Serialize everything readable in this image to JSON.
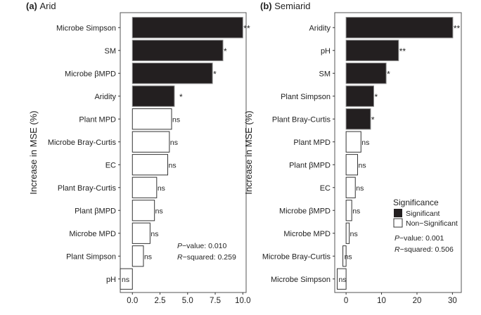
{
  "colors": {
    "significant": "#231f20",
    "non_significant": "#ffffff",
    "frame": "#555555"
  },
  "chart_data": [
    {
      "type": "bar",
      "orientation": "horizontal",
      "panel_label": "(a)",
      "title": "Arid",
      "ylabel": "Increase in MSE (%)",
      "xlim": [
        -1.1,
        10.3
      ],
      "xticks": [
        0.0,
        2.5,
        5.0,
        7.5,
        10.0
      ],
      "xtick_labels": [
        "0.0",
        "2.5",
        "5.0",
        "7.5",
        "10.0"
      ],
      "categories": [
        "Microbe Simpson",
        "SM",
        "Microbe βMPD",
        "Aridity",
        "Plant MPD",
        "Microbe Bray-Curtis",
        "EC",
        "Plant Bray-Curtis",
        "Plant βMPD",
        "Microbe MPD",
        "Plant Simpson",
        "pH"
      ],
      "values": [
        10.0,
        8.2,
        7.25,
        3.8,
        3.55,
        3.35,
        3.2,
        2.2,
        2.0,
        1.6,
        1.0,
        -1.1
      ],
      "significance": [
        "**",
        "*",
        "*",
        "*",
        "ns",
        "ns",
        "ns",
        "ns",
        "ns",
        "ns",
        "ns",
        "ns"
      ],
      "p_label": "P",
      "p_text": "−value: 0.010",
      "r_label": "R",
      "r_text": "−squared: 0.259"
    },
    {
      "type": "bar",
      "orientation": "horizontal",
      "panel_label": "(b)",
      "title": "Semiarid",
      "ylabel": "Increase in MSE (%)",
      "xlim": [
        -3.2,
        32.5
      ],
      "xticks": [
        0,
        10,
        20,
        30
      ],
      "xtick_labels": [
        "0",
        "10",
        "20",
        "30"
      ],
      "categories": [
        "Aridity",
        "pH",
        "SM",
        "Plant Simpson",
        "Plant Bray-Curtis",
        "Plant MPD",
        "Plant βMPD",
        "EC",
        "Microbe βMPD",
        "Microbe MPD",
        "Microbe Bray-Curtis",
        "Microbe Simpson"
      ],
      "values": [
        30.1,
        14.8,
        11.3,
        7.8,
        6.9,
        4.2,
        3.25,
        2.6,
        1.6,
        0.9,
        -0.9,
        -2.5
      ],
      "significance": [
        "**",
        "**",
        "*",
        "*",
        "*",
        "ns",
        "ns",
        "ns",
        "ns",
        "ns",
        "ns",
        "ns"
      ],
      "p_label": "P",
      "p_text": "−value: 0.001",
      "r_label": "R",
      "r_text": "−squared: 0.506",
      "legend": {
        "title": "Significance",
        "items": [
          "Significant",
          "Non−Significant"
        ],
        "position": "bottom-right"
      }
    }
  ]
}
